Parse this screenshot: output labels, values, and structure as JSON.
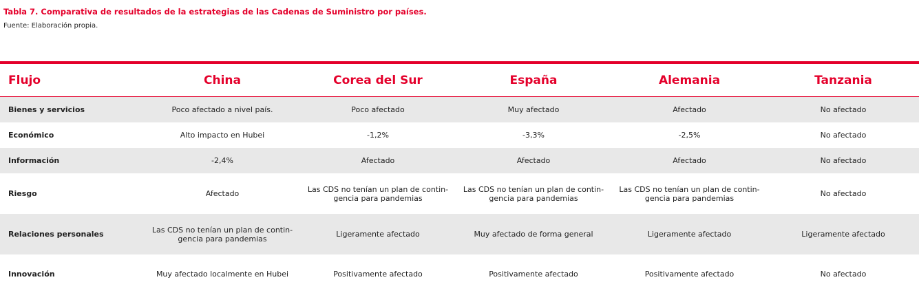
{
  "header": {
    "title": "Tabla 7. Comparativa de resultados de la estrategias de las Cadenas de Suministro por países.",
    "source": "Fuente: Elaboración propia."
  },
  "table": {
    "columns": [
      "Flujo",
      "China",
      "Corea del Sur",
      "España",
      "Alemania",
      "Tanzania"
    ],
    "rows": [
      [
        "Bienes y servicios",
        "Poco afectado a nivel país.",
        "Poco afectado",
        "Muy afectado",
        "Afectado",
        "No afectado"
      ],
      [
        "Económico",
        "Alto impacto en Hubei",
        "-1,2%",
        "-3,3%",
        "-2,5%",
        "No afectado"
      ],
      [
        "Información",
        "-2,4%",
        "Afectado",
        "Afectado",
        "Afectado",
        "No afectado"
      ],
      [
        "Riesgo",
        "Afectado",
        "Las CDS no tenían un plan de contin-\ngencia para pandemias",
        "Las CDS no tenían un plan de contin-\ngencia para pandemias",
        "Las CDS no tenían un plan de contin-\ngencia para pandemias",
        "No afectado"
      ],
      [
        "Relaciones personales",
        "Las CDS no tenían un plan de contin-\ngencia para pandemias",
        "Ligeramente afectado",
        "Muy afectado de forma general",
        "Ligeramente afectado",
        "Ligeramente afectado"
      ],
      [
        "Innovación",
        "Muy afectado localmente en Hubei",
        "Positivamente afectado",
        "Positivamente afectado",
        "Positivamente afectado",
        "No afectado"
      ]
    ]
  }
}
